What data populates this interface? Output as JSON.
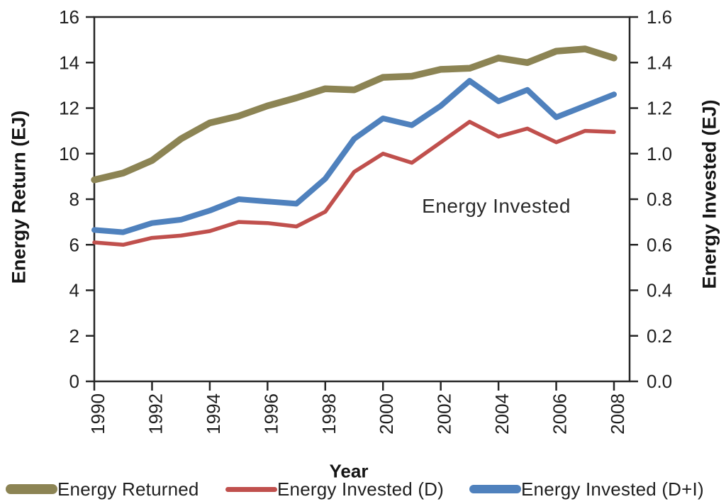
{
  "chart_data": {
    "type": "line",
    "title": "",
    "x": [
      1990,
      1991,
      1992,
      1993,
      1994,
      1995,
      1996,
      1997,
      1998,
      1999,
      2000,
      2001,
      2002,
      2003,
      2004,
      2005,
      2006,
      2007,
      2008
    ],
    "xlabel": "Year",
    "x_tick_labels": [
      "1990",
      "1992",
      "1994",
      "1996",
      "1998",
      "2000",
      "2002",
      "2004",
      "2006",
      "2008"
    ],
    "left_axis": {
      "label": "Energy Return (EJ)",
      "min": 0,
      "max": 16,
      "tick_labels": [
        "0",
        "2",
        "4",
        "6",
        "8",
        "10",
        "12",
        "14",
        "16"
      ]
    },
    "right_axis": {
      "label": "Energy Invested (EJ)",
      "min": 0,
      "max": 1.6,
      "tick_labels": [
        "0.0",
        "0.2",
        "0.4",
        "0.6",
        "0.8",
        "1.0",
        "1.2",
        "1.4",
        "1.6"
      ]
    },
    "grid": false,
    "legend_position": "bottom",
    "annotation": "Energy Invested",
    "text_color": "#1f1f1f",
    "axis_color": "#262626",
    "series": [
      {
        "name": "Energy Returned",
        "axis": "left",
        "color": "#8C8454",
        "line_width": 9.5,
        "swatch_height": 14,
        "values": [
          8.85,
          9.15,
          9.7,
          10.65,
          11.35,
          11.65,
          12.1,
          12.45,
          12.85,
          12.8,
          13.35,
          13.4,
          13.7,
          13.75,
          14.2,
          14.0,
          14.5,
          14.6,
          14.2
        ]
      },
      {
        "name": "Energy Invested (D)",
        "axis": "right",
        "color": "#C0504D",
        "line_width": 5.5,
        "swatch_height": 7,
        "values": [
          0.61,
          0.6,
          0.63,
          0.64,
          0.66,
          0.7,
          0.695,
          0.68,
          0.745,
          0.92,
          1.0,
          0.96,
          1.05,
          1.14,
          1.075,
          1.11,
          1.05,
          1.1,
          1.095
        ]
      },
      {
        "name": "Energy Invested (D+I)",
        "axis": "right",
        "color": "#4F81BD",
        "line_width": 8,
        "swatch_height": 12,
        "values": [
          0.665,
          0.655,
          0.695,
          0.71,
          0.75,
          0.8,
          0.79,
          0.78,
          0.89,
          1.065,
          1.155,
          1.125,
          1.21,
          1.32,
          1.23,
          1.28,
          1.16,
          1.21,
          1.26
        ]
      }
    ]
  }
}
